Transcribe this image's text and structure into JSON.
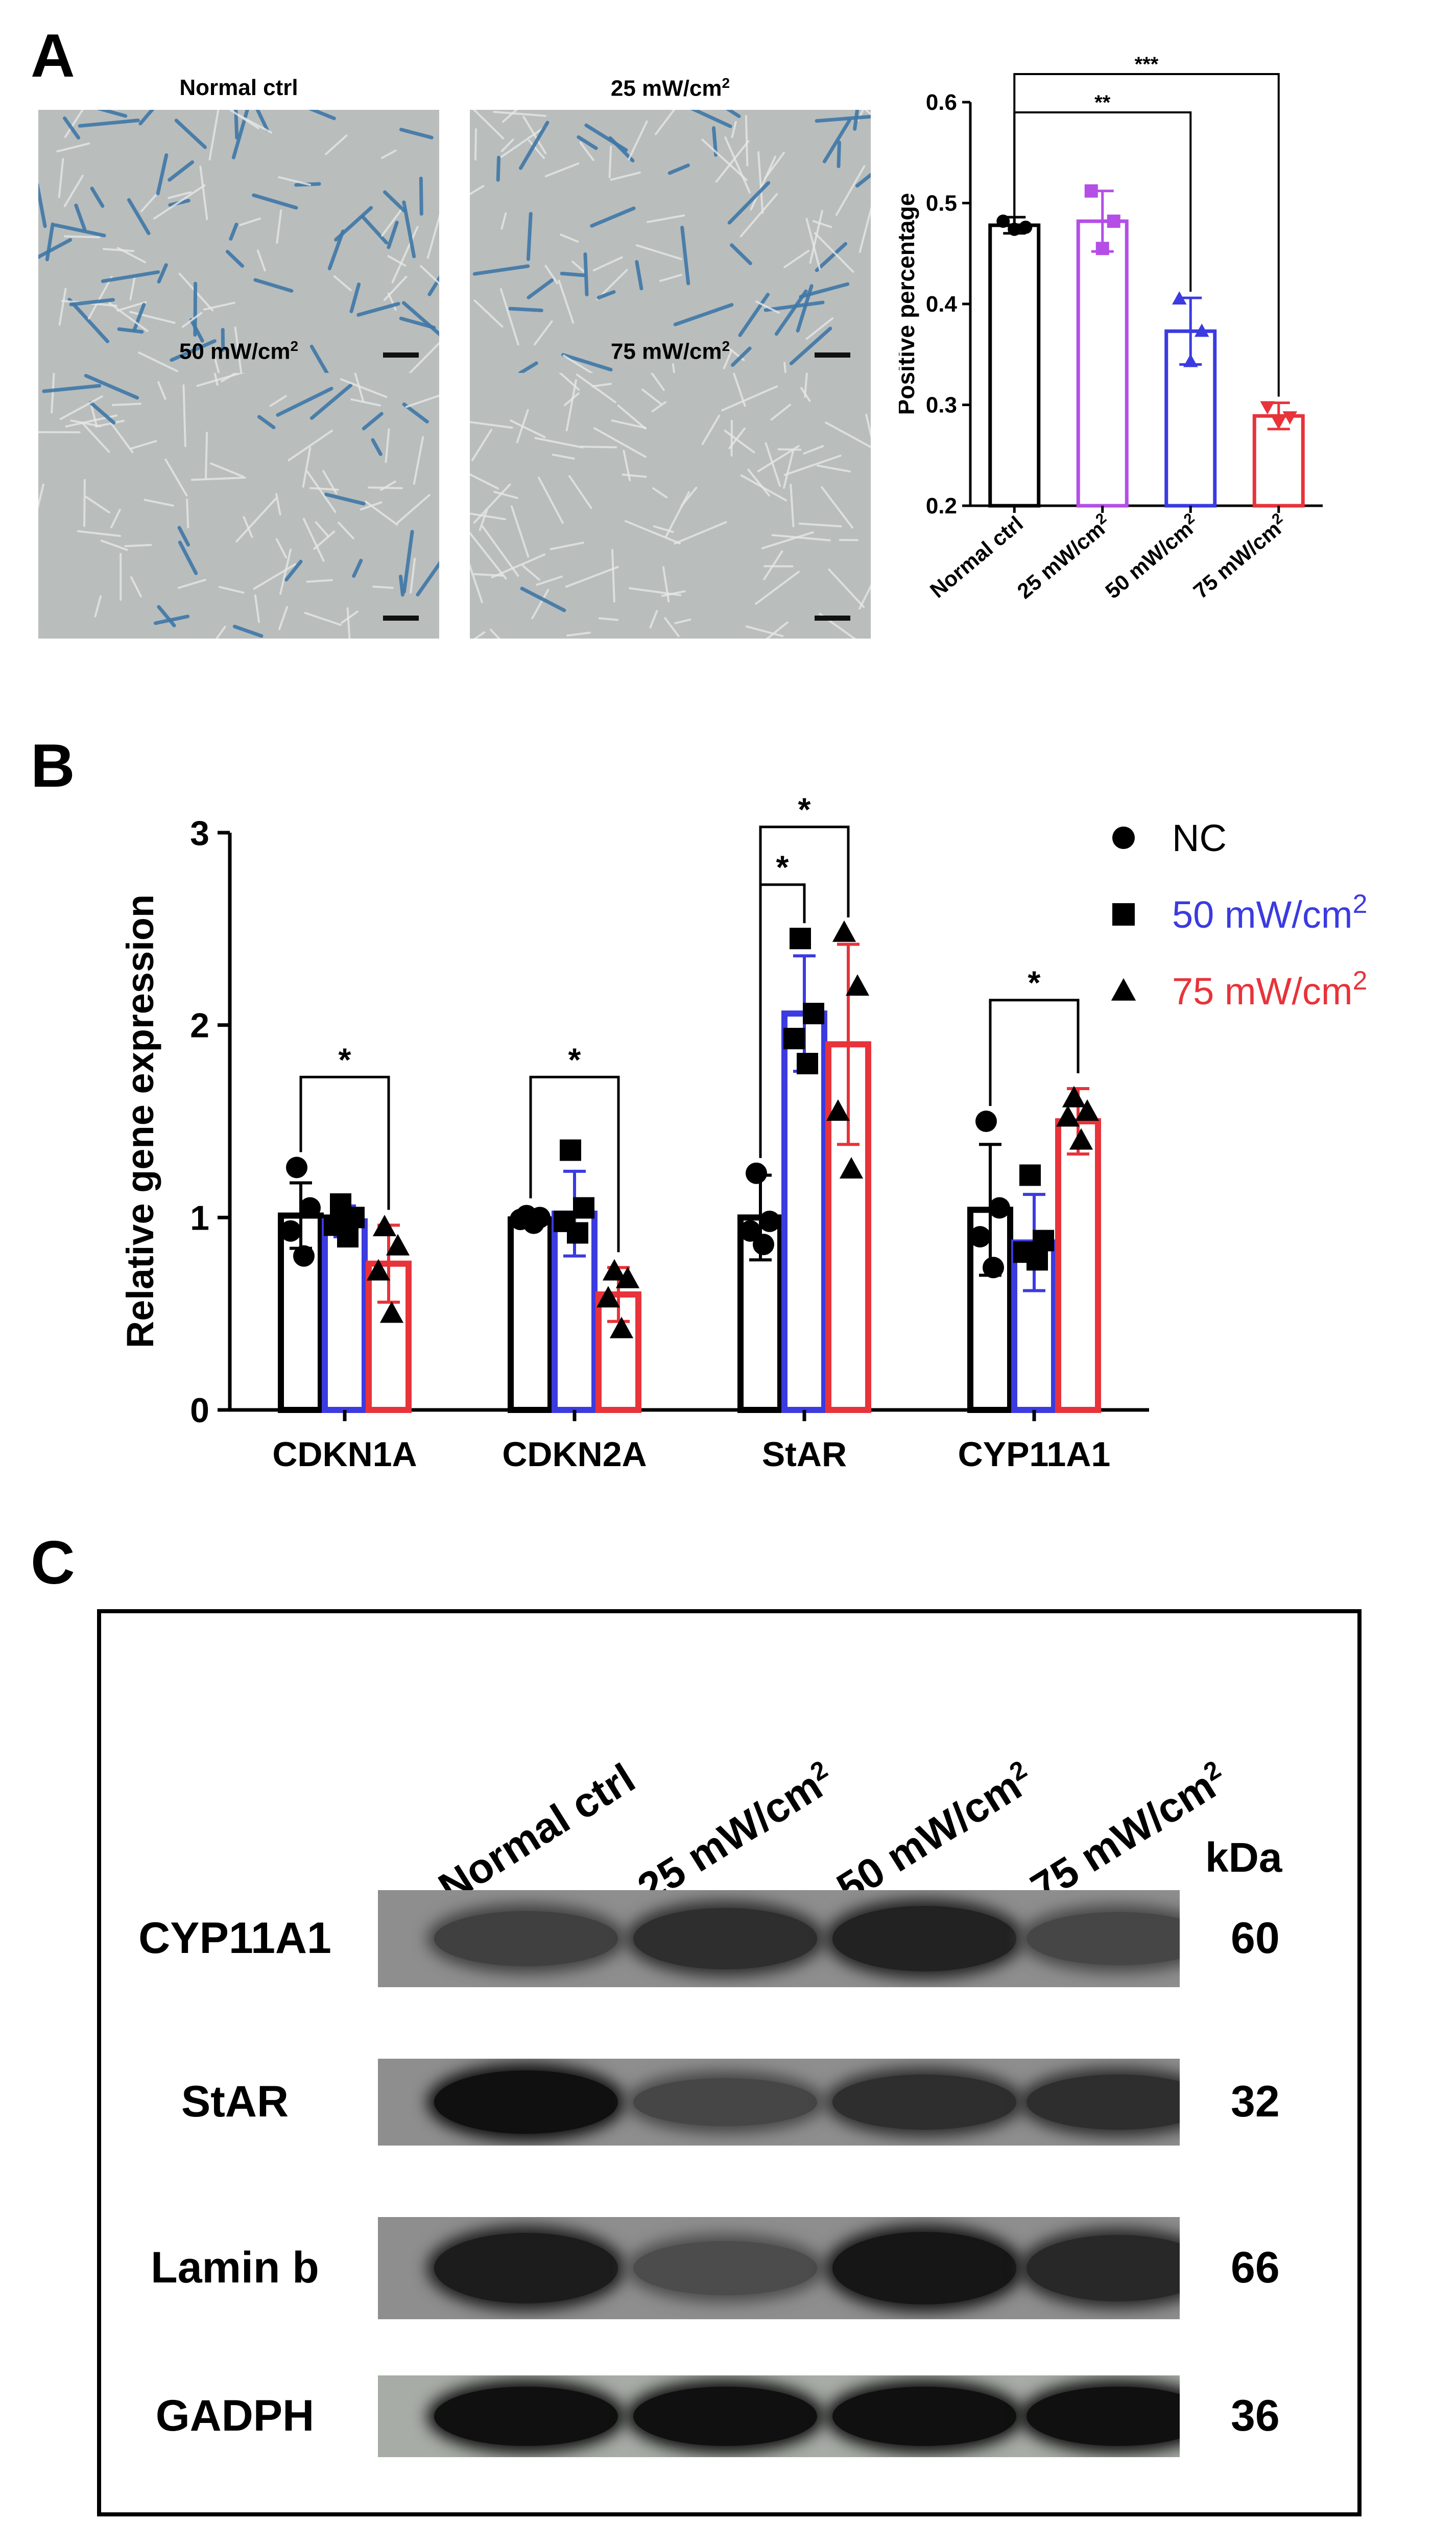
{
  "panels": {
    "a": "A",
    "b": "B",
    "c": "C"
  },
  "micrographs": [
    {
      "title": "Normal ctrl",
      "sup": "",
      "stain_level": 0.9
    },
    {
      "title": "25 mW/cm",
      "sup": "2",
      "stain_level": 0.85
    },
    {
      "title": "50 mW/cm",
      "sup": "2",
      "stain_level": 0.35
    },
    {
      "title": "75 mW/cm",
      "sup": "2",
      "stain_level": 0.08
    }
  ],
  "chart_data": [
    {
      "type": "bar",
      "id": "positive-percentage",
      "ylabel": "Positive percentage",
      "ylim": [
        0.2,
        0.6
      ],
      "yticks": [
        "0.2",
        "0.3",
        "0.4",
        "0.5",
        "0.6"
      ],
      "categories": [
        "Normal ctrl",
        "25 mW/cm",
        "50 mW/cm",
        "75 mW/cm"
      ],
      "category_sup": [
        "",
        "2",
        "2",
        "2"
      ],
      "values": [
        0.478,
        0.482,
        0.373,
        0.289
      ],
      "errors": [
        0.008,
        0.03,
        0.033,
        0.013
      ],
      "points": [
        [
          0.482,
          0.476,
          0.474
        ],
        [
          0.512,
          0.482,
          0.455
        ],
        [
          0.405,
          0.373,
          0.343
        ],
        [
          0.298,
          0.288,
          0.283
        ]
      ],
      "colors": [
        "#000000",
        "#b44ee6",
        "#3b3be0",
        "#e8333a"
      ],
      "markers": [
        "circle",
        "square",
        "triangle",
        "triangle-down"
      ],
      "significance": [
        {
          "from": 0,
          "to": 3,
          "label": "***"
        },
        {
          "from": 0,
          "to": 2,
          "label": "**"
        }
      ]
    },
    {
      "type": "bar",
      "id": "gene-expression",
      "ylabel": "Relative gene expression",
      "ylim": [
        0,
        3
      ],
      "yticks": [
        "0",
        "1",
        "2",
        "3"
      ],
      "categories": [
        "CDKN1A",
        "CDKN2A",
        "StAR",
        "CYP11A1"
      ],
      "series": [
        {
          "name": "NC",
          "sup": "",
          "color": "#000000",
          "legend_color": "#000000",
          "marker": "circle",
          "values": [
            1.01,
            0.99,
            1.0,
            1.04
          ],
          "errors": [
            0.17,
            0.03,
            0.22,
            0.34
          ],
          "points": [
            [
              1.26,
              1.05,
              0.93,
              0.8
            ],
            [
              1.01,
              1.0,
              0.99,
              0.97
            ],
            [
              1.23,
              0.98,
              0.93,
              0.86
            ],
            [
              1.5,
              1.05,
              0.9,
              0.74
            ]
          ]
        },
        {
          "name": "50 mW/cm",
          "sup": "2",
          "color": "#3b3be0",
          "legend_color": "#3b3be0",
          "marker": "square",
          "values": [
            0.98,
            1.02,
            2.06,
            0.87
          ],
          "errors": [
            0.08,
            0.22,
            0.3,
            0.25
          ],
          "points": [
            [
              1.07,
              1.0,
              0.96,
              0.9
            ],
            [
              1.35,
              1.05,
              0.98,
              0.92
            ],
            [
              2.45,
              2.06,
              1.93,
              1.8
            ],
            [
              1.22,
              0.88,
              0.82,
              0.78
            ]
          ]
        },
        {
          "name": "75 mW/cm",
          "sup": "2",
          "color": "#e8333a",
          "legend_color": "#e8333a",
          "marker": "triangle",
          "values": [
            0.76,
            0.6,
            1.9,
            1.5
          ],
          "errors": [
            0.2,
            0.14,
            0.52,
            0.17
          ],
          "points": [
            [
              0.95,
              0.85,
              0.72,
              0.5
            ],
            [
              0.72,
              0.68,
              0.58,
              0.42
            ],
            [
              2.48,
              2.2,
              1.55,
              1.25
            ],
            [
              1.62,
              1.55,
              1.52,
              1.4
            ]
          ]
        }
      ],
      "significance": [
        {
          "group": 0,
          "from": 0,
          "to": 2,
          "label": "*"
        },
        {
          "group": 1,
          "from": 0,
          "to": 2,
          "label": "*"
        },
        {
          "group": 2,
          "from": 0,
          "to": 1,
          "label": "*"
        },
        {
          "group": 2,
          "from": 0,
          "to": 2,
          "label": "*"
        },
        {
          "group": 3,
          "from": 0,
          "to": 2,
          "label": "*"
        }
      ],
      "legend_placement": "right"
    }
  ],
  "western_blot": {
    "lanes": [
      {
        "label": "Normal ctrl",
        "sup": ""
      },
      {
        "label": "25 mW/cm",
        "sup": "2"
      },
      {
        "label": "50 mW/cm",
        "sup": "2"
      },
      {
        "label": "75 mW/cm",
        "sup": "2"
      }
    ],
    "kda_header": "kDa",
    "rows": [
      {
        "protein": "CYP11A1",
        "kda": "60",
        "intensities": [
          0.55,
          0.7,
          0.8,
          0.5
        ]
      },
      {
        "protein": "StAR",
        "kda": "32",
        "intensities": [
          0.95,
          0.5,
          0.7,
          0.7
        ]
      },
      {
        "protein": "Lamin b",
        "kda": "66",
        "intensities": [
          0.85,
          0.45,
          0.9,
          0.75
        ]
      },
      {
        "protein": "GADPH",
        "kda": "36",
        "intensities": [
          0.95,
          0.95,
          0.95,
          0.95
        ]
      }
    ]
  }
}
